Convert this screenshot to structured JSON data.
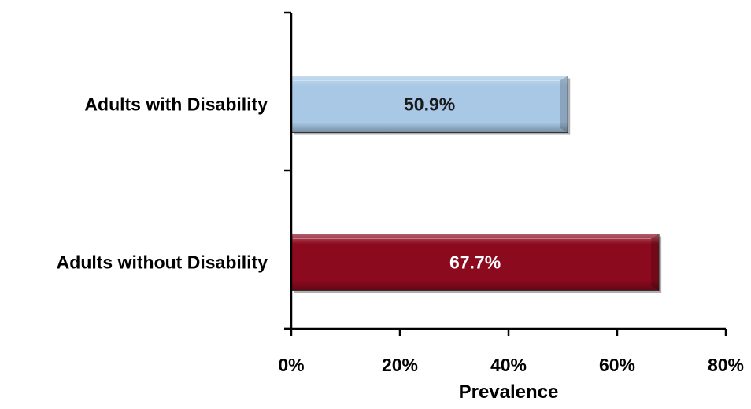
{
  "chart_data": {
    "type": "bar",
    "orientation": "horizontal",
    "categories": [
      "Adults with Disability",
      "Adults without Disability"
    ],
    "values": [
      50.9,
      67.7
    ],
    "data_labels": [
      "50.9%",
      "67.7%"
    ],
    "bar_colors": [
      "#a8c8e6",
      "#8c0a1e"
    ],
    "data_label_colors": [
      "#1a1a1a",
      "#ffffff"
    ],
    "xlabel": "Prevalence",
    "ylabel": "",
    "title": "",
    "xlim": [
      0,
      80
    ],
    "xticks": [
      0,
      20,
      40,
      60,
      80
    ],
    "xtick_labels": [
      "0%",
      "20%",
      "40%",
      "60%",
      "80%"
    ],
    "grid": false,
    "legend": "none"
  }
}
